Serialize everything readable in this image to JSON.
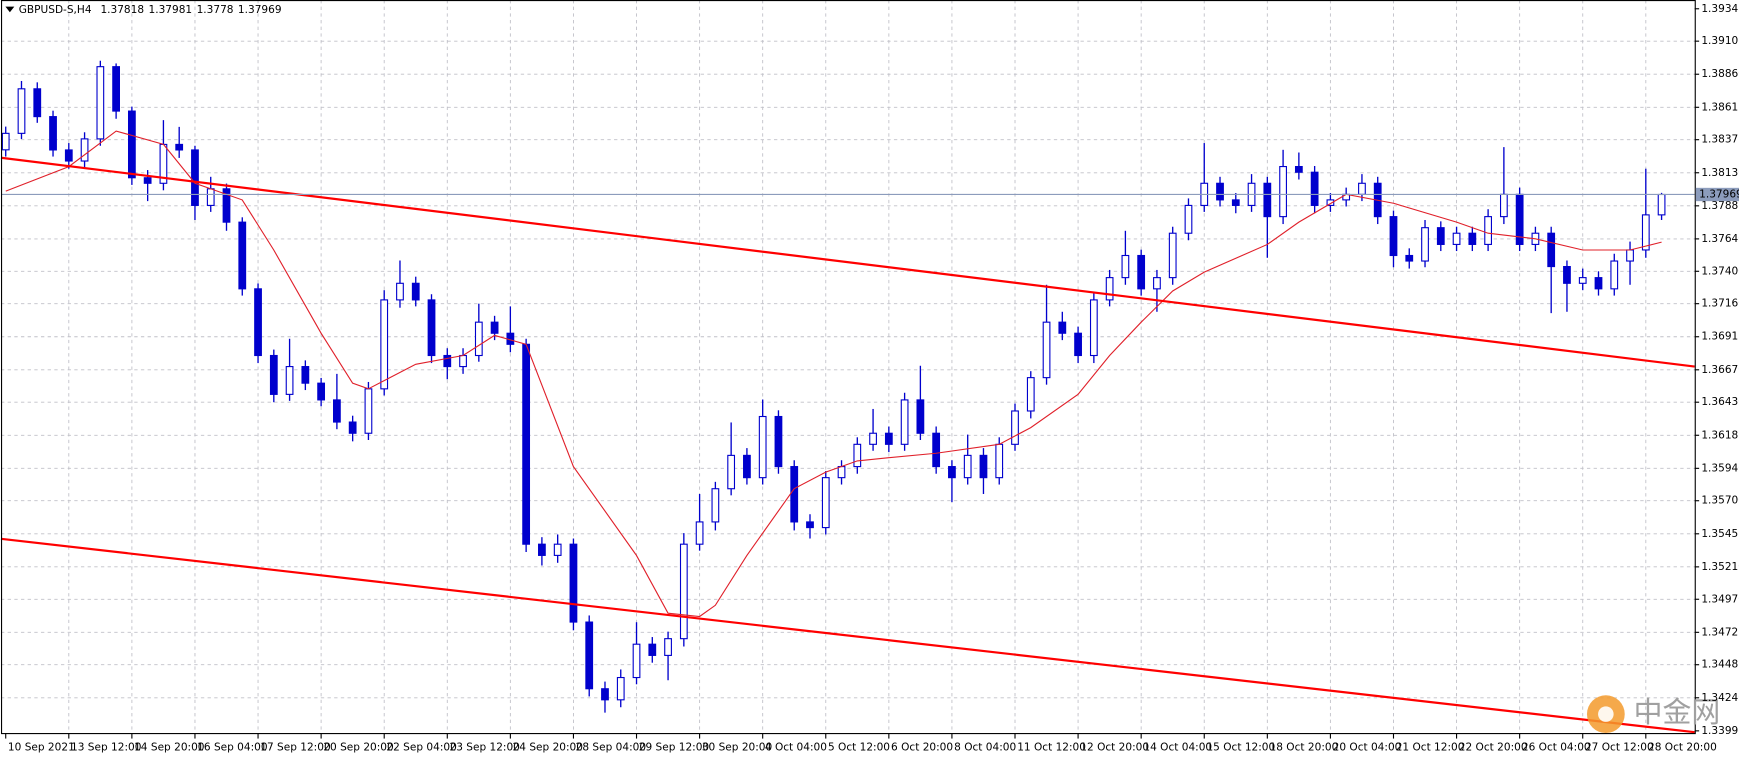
{
  "chart_data": {
    "type": "candlestick",
    "title": "GBPUSD-S,H4",
    "watermark": "中金网",
    "candle_color": "#0000cd",
    "ma_color": "#e0202a",
    "price_line_color": "#8c9cbc",
    "grid": true,
    "xlim": [
      -0.3,
      107.1
    ],
    "ylim": [
      1.33979,
      1.3941
    ],
    "xticks": [
      {
        "value": 0,
        "label": "10 Sep 2021"
      },
      {
        "value": 4,
        "label": "13 Sep 12:00"
      },
      {
        "value": 8,
        "label": "14 Sep 20:00"
      },
      {
        "value": 12,
        "label": "16 Sep 04:00"
      },
      {
        "value": 16,
        "label": "17 Sep 12:00"
      },
      {
        "value": 20,
        "label": "20 Sep 20:00"
      },
      {
        "value": 24,
        "label": "22 Sep 04:00"
      },
      {
        "value": 28,
        "label": "23 Sep 12:00"
      },
      {
        "value": 32,
        "label": "24 Sep 20:00"
      },
      {
        "value": 36,
        "label": "28 Sep 04:00"
      },
      {
        "value": 40,
        "label": "29 Sep 12:00"
      },
      {
        "value": 44,
        "label": "30 Sep 20:00"
      },
      {
        "value": 48,
        "label": "4 Oct 04:00"
      },
      {
        "value": 52,
        "label": "5 Oct 12:00"
      },
      {
        "value": 56,
        "label": "6 Oct 20:00"
      },
      {
        "value": 60,
        "label": "8 Oct 04:00"
      },
      {
        "value": 64,
        "label": "11 Oct 12:00"
      },
      {
        "value": 68,
        "label": "12 Oct 20:00"
      },
      {
        "value": 72,
        "label": "14 Oct 04:00"
      },
      {
        "value": 76,
        "label": "15 Oct 12:00"
      },
      {
        "value": 80,
        "label": "18 Oct 20:00"
      },
      {
        "value": 84,
        "label": "20 Oct 04:00"
      },
      {
        "value": 88,
        "label": "21 Oct 12:00"
      },
      {
        "value": 92,
        "label": "22 Oct 20:00"
      },
      {
        "value": 96,
        "label": "26 Oct 04:00"
      },
      {
        "value": 100,
        "label": "27 Oct 12:00"
      },
      {
        "value": 104,
        "label": "28 Oct 20:00"
      }
    ],
    "yticks": [
      1.39345,
      1.39105,
      {
        "value": 1.3886,
        "label": "1.38860"
      },
      1.38615,
      1.38375,
      {
        "value": 1.3813,
        "label": "1.38130"
      },
      1.37885,
      {
        "value": 1.3764,
        "label": "1.37640"
      },
      {
        "value": 1.374,
        "label": "1.37400"
      },
      {
        "value": 1.3716,
        "label": "1.37160"
      },
      1.36915,
      {
        "value": 1.3667,
        "label": "1.36670"
      },
      {
        "value": 1.3643,
        "label": "1.36430"
      },
      1.36185,
      {
        "value": 1.3594,
        "label": "1.35940"
      },
      {
        "value": 1.357,
        "label": "1.35700"
      },
      1.35455,
      {
        "value": 1.3521,
        "label": "1.35210"
      },
      {
        "value": 1.3497,
        "label": "1.34970"
      },
      1.34725,
      1.34485,
      {
        "value": 1.3424,
        "label": "1.34240"
      },
      1.33995
    ],
    "candles": [
      [
        1.383,
        1.38472,
        1.3825,
        1.38422
      ],
      [
        1.38422,
        1.3881,
        1.3838,
        1.38752
      ],
      [
        1.38752,
        1.388,
        1.385,
        1.38546
      ],
      [
        1.38546,
        1.3859,
        1.3825,
        1.38299
      ],
      [
        1.38299,
        1.3835,
        1.3816,
        1.38217
      ],
      [
        1.38217,
        1.3843,
        1.3817,
        1.38381
      ],
      [
        1.38381,
        1.3896,
        1.3833,
        1.38916
      ],
      [
        1.38916,
        1.3894,
        1.3853,
        1.38587
      ],
      [
        1.38587,
        1.3862,
        1.3804,
        1.38093
      ],
      [
        1.38093,
        1.3815,
        1.3792,
        1.38052
      ],
      [
        1.38052,
        1.3852,
        1.38,
        1.3834
      ],
      [
        1.3834,
        1.3847,
        1.3824,
        1.38299
      ],
      [
        1.38299,
        1.3833,
        1.3778,
        1.37888
      ],
      [
        1.37888,
        1.381,
        1.3784,
        1.38011
      ],
      [
        1.38011,
        1.3805,
        1.377,
        1.37764
      ],
      [
        1.37764,
        1.378,
        1.3722,
        1.3727
      ],
      [
        1.3727,
        1.3731,
        1.3672,
        1.36776
      ],
      [
        1.36776,
        1.3682,
        1.3643,
        1.36488
      ],
      [
        1.36488,
        1.369,
        1.3644,
        1.36694
      ],
      [
        1.36694,
        1.3674,
        1.3652,
        1.36571
      ],
      [
        1.36571,
        1.3661,
        1.364,
        1.36447
      ],
      [
        1.36447,
        1.3664,
        1.3623,
        1.36283
      ],
      [
        1.36283,
        1.3633,
        1.3614,
        1.362
      ],
      [
        1.362,
        1.3658,
        1.3615,
        1.36529
      ],
      [
        1.36529,
        1.3726,
        1.3648,
        1.37188
      ],
      [
        1.37188,
        1.3748,
        1.3713,
        1.37311
      ],
      [
        1.37311,
        1.3736,
        1.3714,
        1.37188
      ],
      [
        1.37188,
        1.3723,
        1.3672,
        1.36776
      ],
      [
        1.36776,
        1.3683,
        1.366,
        1.36694
      ],
      [
        1.36694,
        1.3683,
        1.3664,
        1.36776
      ],
      [
        1.36776,
        1.3716,
        1.3673,
        1.37023
      ],
      [
        1.37023,
        1.3707,
        1.3689,
        1.36941
      ],
      [
        1.36941,
        1.3714,
        1.368,
        1.36859
      ],
      [
        1.36859,
        1.369,
        1.3532,
        1.35378
      ],
      [
        1.35378,
        1.3543,
        1.3522,
        1.35295
      ],
      [
        1.35295,
        1.3545,
        1.3524,
        1.35378
      ],
      [
        1.35378,
        1.3542,
        1.3474,
        1.34801
      ],
      [
        1.34801,
        1.3485,
        1.3425,
        1.34307
      ],
      [
        1.34307,
        1.3436,
        1.3413,
        1.34225
      ],
      [
        1.34225,
        1.3445,
        1.3417,
        1.3439
      ],
      [
        1.3439,
        1.348,
        1.3434,
        1.34637
      ],
      [
        1.34637,
        1.3469,
        1.345,
        1.34554
      ],
      [
        1.34554,
        1.3473,
        1.3437,
        1.34678
      ],
      [
        1.34678,
        1.3546,
        1.3462,
        1.35378
      ],
      [
        1.35378,
        1.3575,
        1.3533,
        1.35543
      ],
      [
        1.35543,
        1.3584,
        1.3548,
        1.35789
      ],
      [
        1.35789,
        1.3628,
        1.3574,
        1.36036
      ],
      [
        1.36036,
        1.3609,
        1.3582,
        1.35871
      ],
      [
        1.35871,
        1.3645,
        1.3582,
        1.36324
      ],
      [
        1.36324,
        1.3637,
        1.359,
        1.35953
      ],
      [
        1.35953,
        1.36,
        1.3548,
        1.35543
      ],
      [
        1.35543,
        1.356,
        1.3542,
        1.35501
      ],
      [
        1.35501,
        1.3592,
        1.3545,
        1.35871
      ],
      [
        1.35871,
        1.36,
        1.3582,
        1.35953
      ],
      [
        1.35953,
        1.3617,
        1.359,
        1.36118
      ],
      [
        1.36118,
        1.3638,
        1.3607,
        1.362
      ],
      [
        1.362,
        1.3625,
        1.3606,
        1.36118
      ],
      [
        1.36118,
        1.365,
        1.3607,
        1.36447
      ],
      [
        1.36447,
        1.367,
        1.3615,
        1.362
      ],
      [
        1.362,
        1.3625,
        1.359,
        1.35953
      ],
      [
        1.35953,
        1.36,
        1.3569,
        1.35871
      ],
      [
        1.35871,
        1.3619,
        1.3582,
        1.36036
      ],
      [
        1.36036,
        1.3609,
        1.3575,
        1.35871
      ],
      [
        1.35871,
        1.3617,
        1.3582,
        1.36118
      ],
      [
        1.36118,
        1.3642,
        1.3607,
        1.36365
      ],
      [
        1.36365,
        1.3666,
        1.3631,
        1.36612
      ],
      [
        1.36612,
        1.373,
        1.3656,
        1.37023
      ],
      [
        1.37023,
        1.371,
        1.3689,
        1.36941
      ],
      [
        1.36941,
        1.3699,
        1.3672,
        1.36776
      ],
      [
        1.36776,
        1.3724,
        1.3672,
        1.37188
      ],
      [
        1.37188,
        1.3741,
        1.3714,
        1.37353
      ],
      [
        1.37353,
        1.377,
        1.373,
        1.37517
      ],
      [
        1.37517,
        1.3756,
        1.3722,
        1.3727
      ],
      [
        1.3727,
        1.3741,
        1.371,
        1.37353
      ],
      [
        1.37353,
        1.3773,
        1.373,
        1.37682
      ],
      [
        1.37682,
        1.3794,
        1.3763,
        1.37888
      ],
      [
        1.37888,
        1.3835,
        1.3784,
        1.38052
      ],
      [
        1.38052,
        1.381,
        1.3788,
        1.37929
      ],
      [
        1.37929,
        1.3798,
        1.3783,
        1.37888
      ],
      [
        1.37888,
        1.3812,
        1.3784,
        1.38052
      ],
      [
        1.38052,
        1.381,
        1.375,
        1.37805
      ],
      [
        1.37805,
        1.383,
        1.3775,
        1.38176
      ],
      [
        1.38176,
        1.3828,
        1.3808,
        1.38134
      ],
      [
        1.38134,
        1.3818,
        1.3783,
        1.37888
      ],
      [
        1.37888,
        1.3798,
        1.3784,
        1.37929
      ],
      [
        1.37929,
        1.3802,
        1.3788,
        1.3797
      ],
      [
        1.3797,
        1.3812,
        1.3792,
        1.38052
      ],
      [
        1.38052,
        1.381,
        1.3775,
        1.37805
      ],
      [
        1.37805,
        1.3785,
        1.3743,
        1.37517
      ],
      [
        1.37517,
        1.3757,
        1.3742,
        1.37476
      ],
      [
        1.37476,
        1.3778,
        1.3743,
        1.37723
      ],
      [
        1.37723,
        1.3777,
        1.3755,
        1.37599
      ],
      [
        1.37599,
        1.3773,
        1.3755,
        1.37682
      ],
      [
        1.37682,
        1.3773,
        1.3755,
        1.37599
      ],
      [
        1.37599,
        1.3786,
        1.3755,
        1.37805
      ],
      [
        1.37805,
        1.3832,
        1.3775,
        1.3797
      ],
      [
        1.3797,
        1.3802,
        1.3755,
        1.37599
      ],
      [
        1.37599,
        1.3773,
        1.3755,
        1.37682
      ],
      [
        1.37682,
        1.3773,
        1.3709,
        1.37435
      ],
      [
        1.37435,
        1.3748,
        1.371,
        1.37311
      ],
      [
        1.37311,
        1.3742,
        1.3726,
        1.37353
      ],
      [
        1.37353,
        1.374,
        1.3722,
        1.3727
      ],
      [
        1.3727,
        1.3753,
        1.3722,
        1.37476
      ],
      [
        1.37476,
        1.3762,
        1.373,
        1.37558
      ],
      [
        1.37558,
        1.3816,
        1.375,
        1.37818
      ],
      [
        1.37818,
        1.37981,
        1.3778,
        1.37969
      ]
    ],
    "ma": {
      "x": [
        0,
        4,
        7,
        10,
        12,
        15,
        17,
        20,
        22,
        23,
        26,
        29,
        31,
        33,
        36,
        40,
        42,
        44,
        45,
        47,
        50,
        52,
        54,
        56,
        59,
        63,
        65,
        68,
        70,
        72,
        74,
        76,
        80,
        82,
        85,
        88,
        92,
        94,
        97,
        100,
        103,
        105
      ],
      "values": [
        1.37994,
        1.38176,
        1.38439,
        1.3834,
        1.38052,
        1.37929,
        1.37558,
        1.36941,
        1.36571,
        1.36529,
        1.36711,
        1.36776,
        1.36925,
        1.36859,
        1.35953,
        1.35295,
        1.34867,
        1.34842,
        1.34925,
        1.35295,
        1.35789,
        1.35912,
        1.35995,
        1.36019,
        1.36052,
        1.36118,
        1.36242,
        1.36488,
        1.36776,
        1.37023,
        1.37254,
        1.37394,
        1.37599,
        1.37764,
        1.3797,
        1.37904,
        1.37764,
        1.37682,
        1.37641,
        1.37558,
        1.37558,
        1.37616
      ]
    },
    "trendlines": [
      {
        "color": "#ff0000",
        "x": [
          -0.3,
          107.1
        ],
        "values": [
          1.38241,
          1.36694
        ]
      },
      {
        "color": "#ff0000",
        "x": [
          -0.3,
          107.1
        ],
        "values": [
          1.35418,
          1.33985
        ]
      }
    ]
  }
}
